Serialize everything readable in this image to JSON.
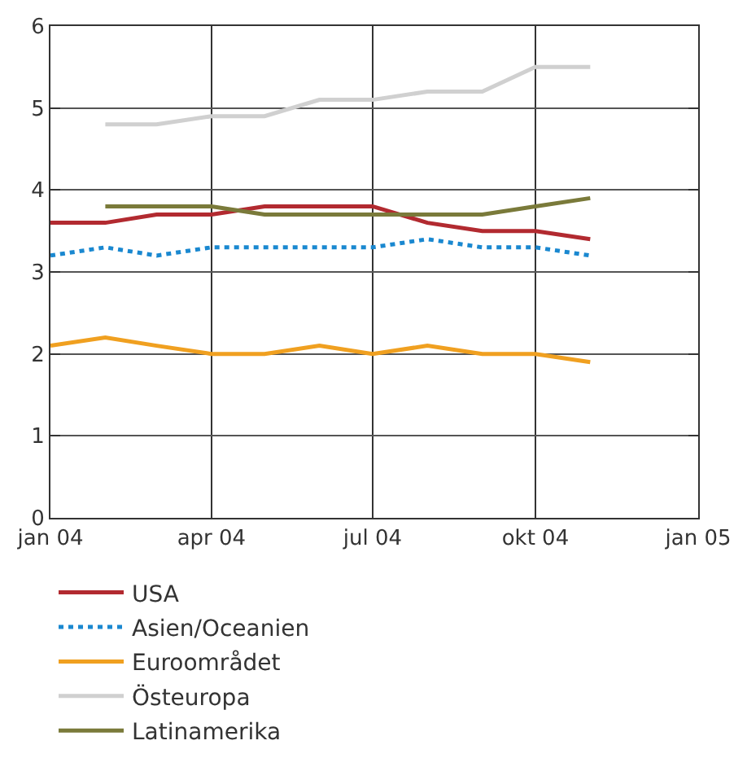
{
  "chart_data": {
    "type": "line",
    "x": [
      "2004-01-01",
      "2004-02-01",
      "2004-03-01",
      "2004-04-01",
      "2004-05-01",
      "2004-06-01",
      "2004-07-01",
      "2004-08-01",
      "2004-09-01",
      "2004-10-01",
      "2004-11-01"
    ],
    "series": [
      {
        "name": "USA",
        "color": "#b22a30",
        "values": [
          3.6,
          3.6,
          3.7,
          3.7,
          3.8,
          3.8,
          3.8,
          3.6,
          3.5,
          3.5,
          3.4
        ]
      },
      {
        "name": "Asien/Oceanien",
        "color": "#1a88d0",
        "line_style": "dotted",
        "values": [
          3.2,
          3.3,
          3.2,
          3.3,
          3.3,
          3.3,
          3.3,
          3.4,
          3.3,
          3.3,
          3.2
        ]
      },
      {
        "name": "Euroområdet",
        "color": "#f0a020",
        "values": [
          2.1,
          2.2,
          2.1,
          2.0,
          2.0,
          2.1,
          2.0,
          2.1,
          2.0,
          2.0,
          1.9
        ]
      },
      {
        "name": "Östeuropa",
        "color": "#d0d0d0",
        "values": [
          null,
          4.8,
          4.8,
          4.9,
          4.9,
          5.1,
          5.1,
          5.2,
          5.2,
          5.5,
          5.5
        ]
      },
      {
        "name": "Latinamerika",
        "color": "#7a7a3a",
        "values": [
          null,
          3.8,
          3.8,
          3.8,
          3.7,
          3.7,
          3.7,
          3.7,
          3.7,
          3.8,
          3.9
        ]
      }
    ],
    "xlim": [
      "2004-01-01",
      "2005-01-01"
    ],
    "xticks": [
      {
        "value": "2004-01-01",
        "label": "jan 04"
      },
      {
        "value": "2004-04-01",
        "label": "apr 04"
      },
      {
        "value": "2004-07-01",
        "label": "jul 04"
      },
      {
        "value": "2004-10-01",
        "label": "okt 04"
      },
      {
        "value": "2005-01-01",
        "label": "jan 05"
      }
    ],
    "ylim": [
      0,
      6
    ],
    "yticks": [
      0,
      1,
      2,
      3,
      4,
      5,
      6
    ],
    "grid": true,
    "legend": "bottom",
    "line_style": "solid",
    "marker": "none"
  }
}
